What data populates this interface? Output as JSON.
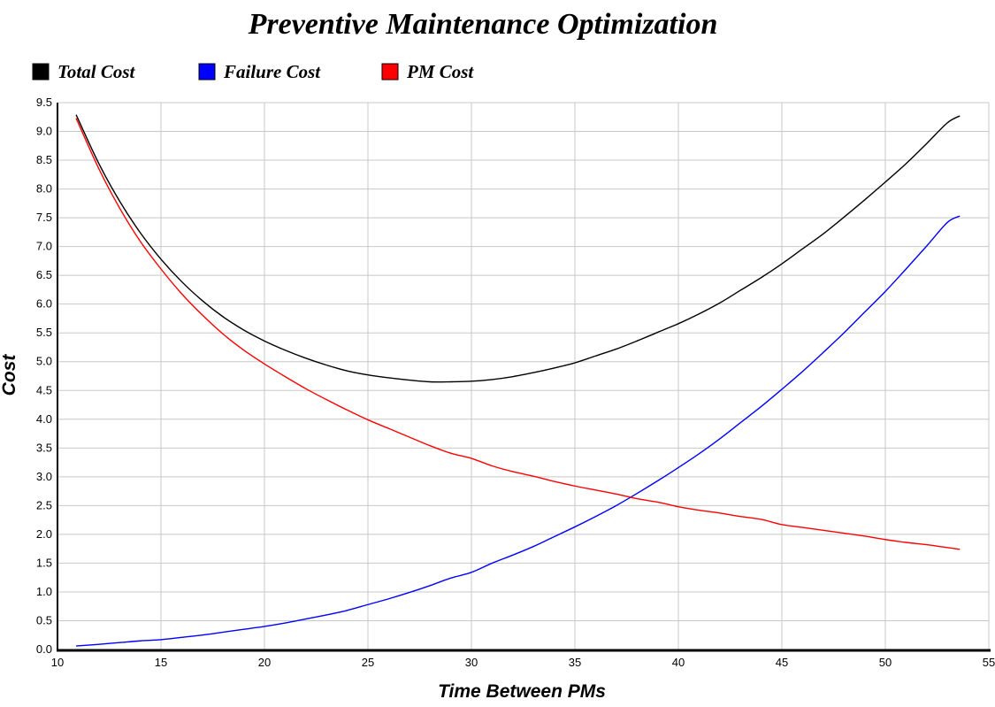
{
  "chart_data": {
    "type": "line",
    "title": "Preventive Maintenance Optimization",
    "xlabel": "Time Between PMs",
    "ylabel": "Cost",
    "xlim": [
      10,
      55
    ],
    "ylim": [
      0,
      9.5
    ],
    "xticks": [
      10,
      15,
      20,
      25,
      30,
      35,
      40,
      45,
      50,
      55
    ],
    "yticks": [
      0.0,
      0.5,
      1.0,
      1.5,
      2.0,
      2.5,
      3.0,
      3.5,
      4.0,
      4.5,
      5.0,
      5.5,
      6.0,
      6.5,
      7.0,
      7.5,
      8.0,
      8.5,
      9.0,
      9.5
    ],
    "grid": true,
    "legend_position": "top-left",
    "x": [
      10.9,
      12,
      13,
      14,
      15,
      16,
      17,
      18,
      19,
      20,
      21,
      22,
      23,
      24,
      25,
      26,
      27,
      28,
      29,
      30,
      31,
      32,
      33,
      34,
      35,
      36,
      37,
      38,
      39,
      40,
      41,
      42,
      43,
      44,
      45,
      46,
      47,
      48,
      49,
      50,
      51,
      52,
      53,
      53.6
    ],
    "series": [
      {
        "name": "Total Cost",
        "color": "#000000",
        "values": [
          9.29,
          8.44,
          7.79,
          7.24,
          6.78,
          6.39,
          6.06,
          5.78,
          5.55,
          5.36,
          5.2,
          5.06,
          4.94,
          4.84,
          4.77,
          4.72,
          4.68,
          4.65,
          4.65,
          4.66,
          4.69,
          4.74,
          4.81,
          4.89,
          4.98,
          5.1,
          5.22,
          5.36,
          5.51,
          5.66,
          5.83,
          6.02,
          6.24,
          6.46,
          6.7,
          6.96,
          7.22,
          7.51,
          7.81,
          8.12,
          8.44,
          8.79,
          9.15,
          9.27
        ]
      },
      {
        "name": "Failure Cost",
        "color": "#0000ff",
        "values": [
          0.06,
          0.09,
          0.12,
          0.15,
          0.17,
          0.21,
          0.25,
          0.3,
          0.35,
          0.4,
          0.46,
          0.53,
          0.6,
          0.68,
          0.78,
          0.88,
          0.99,
          1.11,
          1.24,
          1.34,
          1.5,
          1.64,
          1.79,
          1.96,
          2.13,
          2.31,
          2.5,
          2.71,
          2.93,
          3.16,
          3.4,
          3.66,
          3.94,
          4.22,
          4.52,
          4.83,
          5.16,
          5.5,
          5.86,
          6.22,
          6.61,
          7.01,
          7.42,
          7.53
        ]
      },
      {
        "name": "PM Cost",
        "color": "#ff0000",
        "values": [
          9.23,
          8.35,
          7.67,
          7.09,
          6.61,
          6.18,
          5.81,
          5.48,
          5.2,
          4.96,
          4.74,
          4.53,
          4.34,
          4.16,
          3.99,
          3.84,
          3.69,
          3.54,
          3.41,
          3.32,
          3.19,
          3.09,
          3.01,
          2.92,
          2.84,
          2.77,
          2.7,
          2.62,
          2.56,
          2.48,
          2.42,
          2.37,
          2.31,
          2.26,
          2.17,
          2.12,
          2.07,
          2.02,
          1.97,
          1.91,
          1.86,
          1.82,
          1.77,
          1.74
        ]
      }
    ]
  }
}
